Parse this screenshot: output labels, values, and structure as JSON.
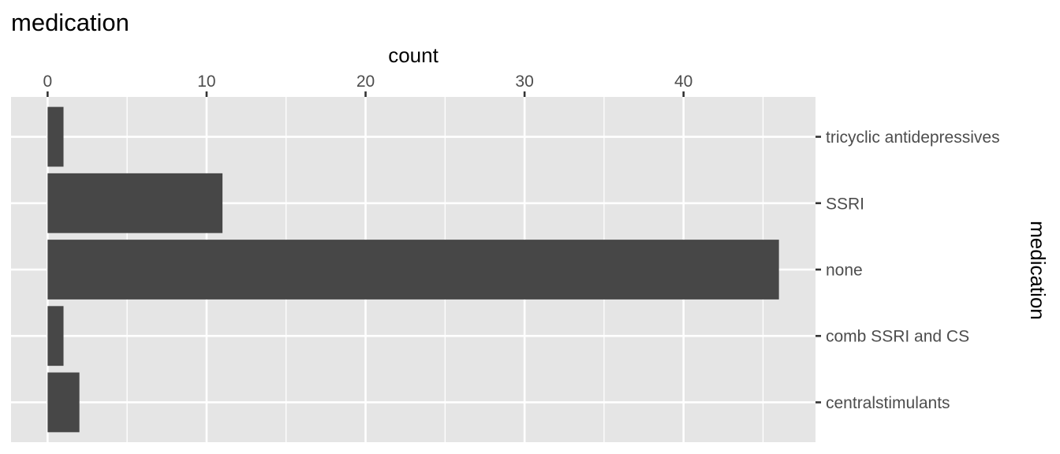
{
  "chart_data": {
    "type": "bar",
    "orientation": "horizontal",
    "title": "medication",
    "xlabel": "count",
    "ylabel": "medication",
    "x_axis_position": "top",
    "y_axis_position": "right",
    "xlim": [
      -2.3,
      48.3
    ],
    "x_ticks": [
      0,
      10,
      20,
      30,
      40
    ],
    "x_tick_labels": [
      "0",
      "10",
      "20",
      "30",
      "40"
    ],
    "categories": [
      "tricyclic antidepressives",
      "SSRI",
      "none",
      "comb SSRI and CS",
      "centralstimulants"
    ],
    "values": [
      1,
      11,
      46,
      1,
      2
    ],
    "grid": true,
    "legend": "none",
    "colors": {
      "bar": "#474747",
      "panel_background": "#e5e5e5",
      "grid": "#ffffff",
      "tick_text": "#4d4d4d",
      "tick_mark": "#333333",
      "title": "#000000"
    }
  }
}
